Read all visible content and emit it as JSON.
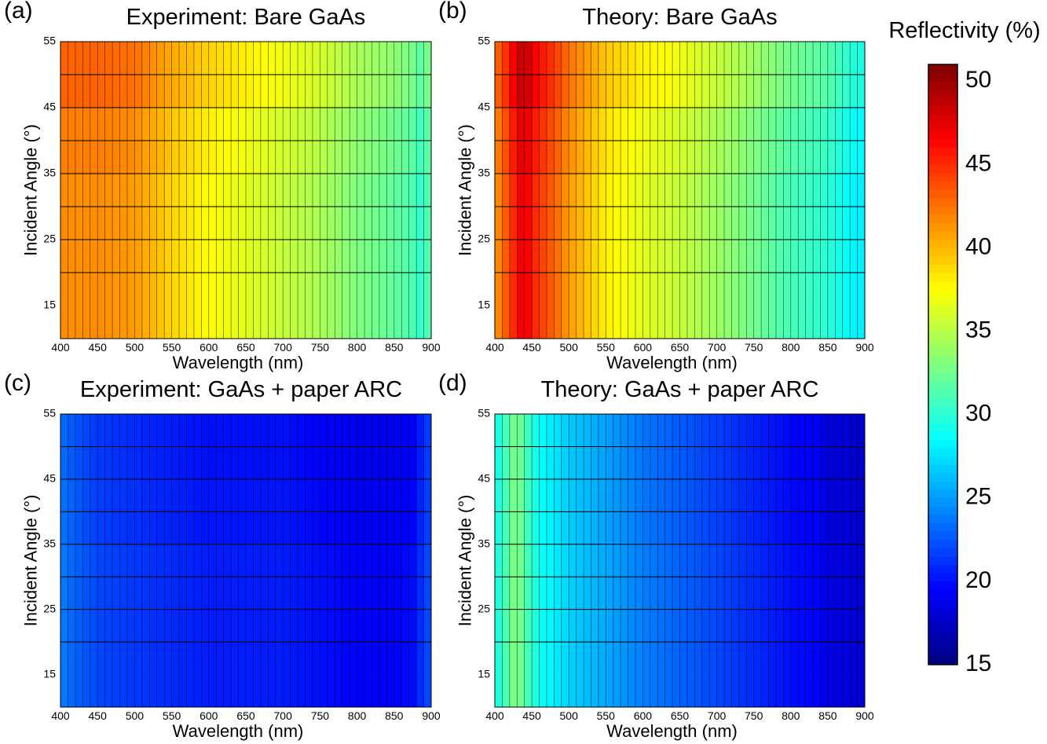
{
  "chart_data": [
    {
      "type": "heatmap",
      "panel_label": "(a)",
      "title": "Experiment: Bare GaAs",
      "xlabel": "Wavelength (nm)",
      "ylabel": "Incident Angle (°)",
      "x_ticks": [
        "400",
        "450",
        "500",
        "550",
        "600",
        "650",
        "700",
        "750",
        "800",
        "850",
        "900"
      ],
      "y_ticks": [
        "55",
        "45",
        "35",
        "25",
        "15"
      ],
      "xlim": [
        400,
        900
      ],
      "ylim": [
        10,
        55
      ],
      "grid": true,
      "column_step_nm": 10,
      "row_step_deg": 5,
      "value_unit": "Reflectivity (%)",
      "profile_wavelength": [
        400,
        450,
        500,
        550,
        600,
        650,
        700,
        750,
        800,
        850,
        880,
        890,
        900
      ],
      "profile_reflectivity": [
        41.5,
        41.5,
        41.0,
        39.0,
        37.5,
        36.5,
        35.5,
        34.5,
        33.0,
        32.0,
        31.0,
        29.5,
        33.0
      ],
      "angle_adjustment": {
        "45-55": 1.5,
        "35-45": 0.5,
        "10-35": 0.0
      }
    },
    {
      "type": "heatmap",
      "panel_label": "(b)",
      "title": "Theory: Bare GaAs",
      "xlabel": "Wavelength (nm)",
      "ylabel": "Incident Angle (°)",
      "x_ticks": [
        "400",
        "450",
        "500",
        "550",
        "600",
        "650",
        "700",
        "750",
        "800",
        "850",
        "900"
      ],
      "y_ticks": [
        "55",
        "45",
        "35",
        "25",
        "15"
      ],
      "xlim": [
        400,
        900
      ],
      "ylim": [
        10,
        55
      ],
      "grid": true,
      "column_step_nm": 10,
      "row_step_deg": 5,
      "value_unit": "Reflectivity (%)",
      "profile_wavelength": [
        400,
        410,
        420,
        430,
        440,
        450,
        460,
        480,
        500,
        550,
        600,
        650,
        700,
        750,
        800,
        850,
        890,
        900
      ],
      "profile_reflectivity": [
        41.0,
        42.5,
        44.0,
        46.0,
        47.5,
        45.5,
        44.5,
        43.0,
        41.0,
        38.0,
        36.5,
        35.5,
        34.0,
        32.5,
        31.0,
        30.0,
        28.0,
        28.0
      ],
      "angle_adjustment": {
        "45-55": 1.5,
        "35-45": 0.5,
        "10-35": 0.0
      }
    },
    {
      "type": "heatmap",
      "panel_label": "(c)",
      "title": "Experiment: GaAs + paper ARC",
      "xlabel": "Wavelength (nm)",
      "ylabel": "Incident Angle (°)",
      "x_ticks": [
        "400",
        "450",
        "500",
        "550",
        "600",
        "650",
        "700",
        "750",
        "800",
        "850",
        "900"
      ],
      "y_ticks": [
        "55",
        "45",
        "35",
        "25",
        "15"
      ],
      "xlim": [
        400,
        900
      ],
      "ylim": [
        10,
        55
      ],
      "grid": true,
      "column_step_nm": 10,
      "row_step_deg": 5,
      "value_unit": "Reflectivity (%)",
      "profile_wavelength": [
        400,
        420,
        450,
        500,
        550,
        600,
        650,
        700,
        750,
        800,
        850,
        880,
        890,
        900
      ],
      "profile_reflectivity": [
        24.0,
        23.0,
        22.0,
        21.5,
        21.0,
        20.5,
        20.5,
        20.5,
        20.0,
        19.5,
        19.5,
        20.0,
        22.0,
        22.0
      ],
      "angle_adjustment": {
        "45-55": -0.5,
        "35-45": -0.3,
        "10-35": 0.0
      }
    },
    {
      "type": "heatmap",
      "panel_label": "(d)",
      "title": "Theory: GaAs + paper ARC",
      "xlabel": "Wavelength (nm)",
      "ylabel": "Incident Angle (°)",
      "x_ticks": [
        "400",
        "450",
        "500",
        "550",
        "600",
        "650",
        "700",
        "750",
        "800",
        "850",
        "900"
      ],
      "y_ticks": [
        "55",
        "45",
        "35",
        "25",
        "15"
      ],
      "xlim": [
        400,
        900
      ],
      "ylim": [
        10,
        55
      ],
      "grid": true,
      "column_step_nm": 10,
      "row_step_deg": 5,
      "value_unit": "Reflectivity (%)",
      "profile_wavelength": [
        400,
        420,
        430,
        440,
        460,
        500,
        550,
        600,
        650,
        700,
        750,
        800,
        840,
        850,
        880,
        890,
        900
      ],
      "profile_reflectivity": [
        29.0,
        32.0,
        33.5,
        31.5,
        29.0,
        27.0,
        25.5,
        24.0,
        23.0,
        22.0,
        21.0,
        20.0,
        19.5,
        18.5,
        18.5,
        18.0,
        18.0
      ],
      "angle_adjustment": {
        "45-55": -0.3,
        "35-45": -0.2,
        "10-35": 0.0
      }
    }
  ],
  "colorbar": {
    "title": "Reflectivity (%)",
    "min": 15,
    "max": 51,
    "ticks": [
      "50",
      "45",
      "40",
      "35",
      "30",
      "25",
      "20",
      "15"
    ],
    "tick_values": [
      50,
      45,
      40,
      35,
      30,
      25,
      20,
      15
    ],
    "colormap": "jet",
    "colormap_stops": [
      {
        "v": 0.0,
        "color": "#00007f"
      },
      {
        "v": 0.125,
        "color": "#0000ff"
      },
      {
        "v": 0.375,
        "color": "#00ffff"
      },
      {
        "v": 0.625,
        "color": "#ffff00"
      },
      {
        "v": 0.875,
        "color": "#ff0000"
      },
      {
        "v": 1.0,
        "color": "#7f0000"
      }
    ]
  }
}
